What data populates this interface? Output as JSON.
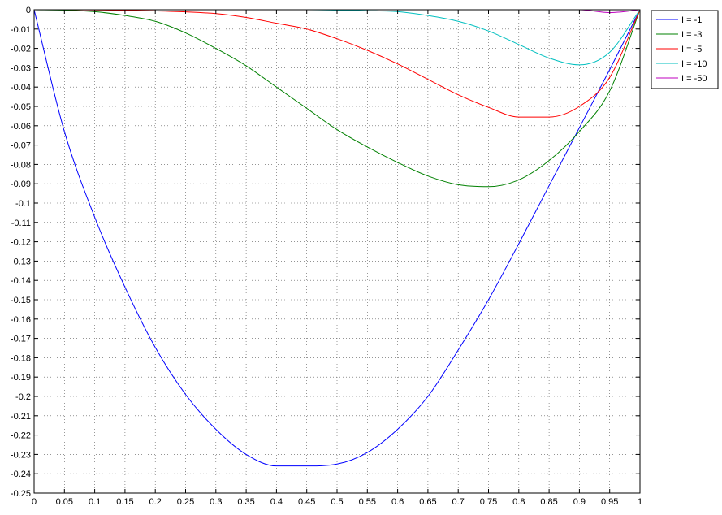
{
  "chart_data": {
    "type": "line",
    "title": "",
    "xlabel": "",
    "ylabel": "",
    "xlim": [
      0,
      1
    ],
    "ylim": [
      -0.25,
      0
    ],
    "grid": true,
    "grid_style": "dotted",
    "legend_position": "outside-top-right",
    "x_ticks": [
      "0",
      "0.05",
      "0.1",
      "0.15",
      "0.2",
      "0.25",
      "0.3",
      "0.35",
      "0.4",
      "0.45",
      "0.5",
      "0.55",
      "0.6",
      "0.65",
      "0.7",
      "0.75",
      "0.8",
      "0.85",
      "0.9",
      "0.95",
      "1"
    ],
    "y_ticks": [
      "0",
      "-0.01",
      "-0.02",
      "-0.03",
      "-0.04",
      "-0.05",
      "-0.06",
      "-0.07",
      "-0.08",
      "-0.09",
      "-0.1",
      "-0.11",
      "-0.12",
      "-0.13",
      "-0.14",
      "-0.15",
      "-0.16",
      "-0.17",
      "-0.18",
      "-0.19",
      "-0.2",
      "-0.21",
      "-0.22",
      "-0.23",
      "-0.24",
      "-0.25"
    ],
    "x": [
      0,
      0.05,
      0.1,
      0.15,
      0.2,
      0.25,
      0.3,
      0.35,
      0.4,
      0.45,
      0.5,
      0.55,
      0.6,
      0.65,
      0.7,
      0.75,
      0.8,
      0.85,
      0.9,
      0.95,
      1
    ],
    "series": [
      {
        "name": "I = -1",
        "color": "#0000ff",
        "values": [
          0,
          -0.063,
          -0.1073,
          -0.1435,
          -0.1747,
          -0.199,
          -0.217,
          -0.23,
          -0.236,
          -0.236,
          -0.235,
          -0.229,
          -0.217,
          -0.2,
          -0.176,
          -0.15,
          -0.121,
          -0.091,
          -0.061,
          -0.031,
          0
        ]
      },
      {
        "name": "I = -3",
        "color": "#008000",
        "values": [
          0,
          -0.0002,
          -0.001,
          -0.003,
          -0.006,
          -0.012,
          -0.02,
          -0.029,
          -0.04,
          -0.051,
          -0.062,
          -0.071,
          -0.079,
          -0.086,
          -0.0905,
          -0.0915,
          -0.088,
          -0.078,
          -0.063,
          -0.042,
          0
        ]
      },
      {
        "name": "I = -5",
        "color": "#ff0000",
        "values": [
          0,
          0,
          -0.0001,
          -0.0003,
          -0.0006,
          -0.0011,
          -0.002,
          -0.004,
          -0.007,
          -0.01,
          -0.015,
          -0.021,
          -0.028,
          -0.036,
          -0.044,
          -0.0505,
          -0.0555,
          -0.0555,
          -0.05,
          -0.035,
          0
        ]
      },
      {
        "name": "I = -10",
        "color": "#00bfbf",
        "values": [
          0,
          0,
          0,
          0,
          0,
          0,
          0,
          0,
          0,
          0,
          -0.0002,
          -0.0005,
          -0.001,
          -0.003,
          -0.006,
          -0.011,
          -0.018,
          -0.025,
          -0.0285,
          -0.022,
          0
        ]
      },
      {
        "name": "I = -50",
        "color": "#bf00bf",
        "values": [
          0,
          0,
          0,
          0,
          0,
          0,
          0,
          0,
          0,
          0,
          0,
          0,
          0,
          0,
          0,
          0,
          0,
          0,
          0,
          -0.0015,
          0
        ]
      }
    ]
  }
}
